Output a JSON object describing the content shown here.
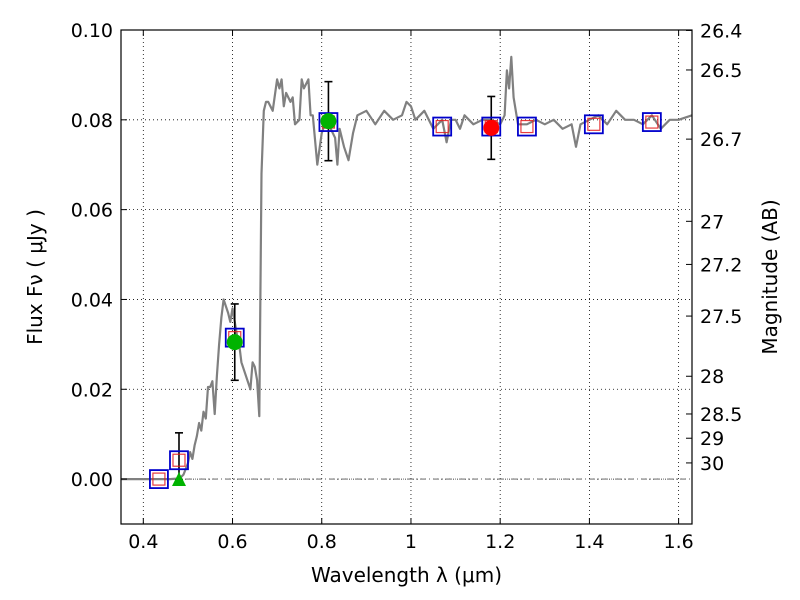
{
  "chart_data": {
    "type": "scatter",
    "title": "",
    "xlabel": "Wavelength  λ (μm)",
    "ylabel_left": "Flux  Fν  ( μJy )",
    "ylabel_right": "Magnitude (AB)",
    "xlim": [
      0.35,
      1.63
    ],
    "ylim": [
      -0.01,
      0.1
    ],
    "grid": true,
    "x_ticks": [
      0.4,
      0.6,
      0.8,
      1.0,
      1.2,
      1.4,
      1.6
    ],
    "x_tick_labels": [
      "0.4",
      "0.6",
      "0.8",
      "1",
      "1.2",
      "1.4",
      "1.6"
    ],
    "y_ticks": [
      0.0,
      0.02,
      0.04,
      0.06,
      0.08,
      0.1
    ],
    "y_tick_labels": [
      "0.00",
      "0.02",
      "0.04",
      "0.06",
      "0.08",
      "0.10"
    ],
    "right_ticks": [
      {
        "label": "26.4",
        "flux": 0.0999
      },
      {
        "label": "26.5",
        "flux": 0.0911
      },
      {
        "label": "26.7",
        "flux": 0.0757
      },
      {
        "label": "27",
        "flux": 0.0574
      },
      {
        "label": "27.2",
        "flux": 0.0478
      },
      {
        "label": "27.5",
        "flux": 0.0363
      },
      {
        "label": "28",
        "flux": 0.0229
      },
      {
        "label": "28.5",
        "flux": 0.0145
      },
      {
        "label": "29",
        "flux": 0.0091
      },
      {
        "label": "30",
        "flux": 0.0036
      }
    ],
    "colors": {
      "sed": "#808080",
      "model_box": "#0000cc",
      "model_inner": "#e31a1c",
      "detection_green": "#00b300",
      "detection_red": "#ff0000",
      "errorbar": "#000000",
      "zero_line": "#555555",
      "grid": "#000000"
    },
    "series": [
      {
        "name": "SED template",
        "type": "line",
        "x": [
          0.35,
          0.46,
          0.475,
          0.482,
          0.49,
          0.5,
          0.505,
          0.51,
          0.515,
          0.52,
          0.525,
          0.53,
          0.535,
          0.54,
          0.545,
          0.55,
          0.555,
          0.56,
          0.565,
          0.57,
          0.575,
          0.58,
          0.59,
          0.595,
          0.6,
          0.61,
          0.615,
          0.62,
          0.63,
          0.64,
          0.645,
          0.65,
          0.655,
          0.66,
          0.665,
          0.67,
          0.675,
          0.68,
          0.69,
          0.7,
          0.705,
          0.71,
          0.715,
          0.72,
          0.73,
          0.735,
          0.74,
          0.75,
          0.755,
          0.76,
          0.77,
          0.775,
          0.78,
          0.79,
          0.8,
          0.81,
          0.82,
          0.83,
          0.835,
          0.84,
          0.85,
          0.86,
          0.87,
          0.88,
          0.9,
          0.92,
          0.94,
          0.96,
          0.98,
          0.99,
          1.0,
          1.01,
          1.02,
          1.03,
          1.05,
          1.07,
          1.08,
          1.09,
          1.1,
          1.11,
          1.12,
          1.14,
          1.16,
          1.18,
          1.2,
          1.21,
          1.215,
          1.22,
          1.225,
          1.23,
          1.24,
          1.26,
          1.28,
          1.3,
          1.32,
          1.34,
          1.36,
          1.37,
          1.38,
          1.4,
          1.42,
          1.44,
          1.46,
          1.48,
          1.5,
          1.52,
          1.54,
          1.56,
          1.58,
          1.6,
          1.63
        ],
        "y": [
          0.0,
          0.0,
          0.0001,
          0.0002,
          0.001,
          0.0035,
          0.006,
          0.0045,
          0.0075,
          0.0095,
          0.0125,
          0.0108,
          0.015,
          0.0135,
          0.0205,
          0.0205,
          0.0218,
          0.0145,
          0.023,
          0.03,
          0.036,
          0.04,
          0.037,
          0.035,
          0.038,
          0.032,
          0.03,
          0.026,
          0.023,
          0.02,
          0.026,
          0.025,
          0.022,
          0.014,
          0.068,
          0.082,
          0.084,
          0.084,
          0.082,
          0.089,
          0.087,
          0.089,
          0.083,
          0.086,
          0.084,
          0.085,
          0.079,
          0.08,
          0.089,
          0.087,
          0.089,
          0.081,
          0.081,
          0.07,
          0.077,
          0.08,
          0.078,
          0.076,
          0.07,
          0.078,
          0.074,
          0.071,
          0.077,
          0.081,
          0.082,
          0.079,
          0.082,
          0.08,
          0.081,
          0.084,
          0.083,
          0.08,
          0.081,
          0.082,
          0.078,
          0.08,
          0.075,
          0.08,
          0.08,
          0.078,
          0.081,
          0.079,
          0.08,
          0.08,
          0.079,
          0.081,
          0.091,
          0.087,
          0.094,
          0.085,
          0.079,
          0.079,
          0.08,
          0.079,
          0.08,
          0.078,
          0.079,
          0.074,
          0.079,
          0.08,
          0.081,
          0.079,
          0.082,
          0.08,
          0.08,
          0.079,
          0.081,
          0.078,
          0.08,
          0.08,
          0.081
        ]
      },
      {
        "name": "Model photometry",
        "type": "open-square",
        "x": [
          0.435,
          0.48,
          0.605,
          0.815,
          1.07,
          1.18,
          1.26,
          1.41,
          1.54
        ],
        "y": [
          0.0,
          0.0042,
          0.0315,
          0.0795,
          0.0785,
          0.0785,
          0.0785,
          0.079,
          0.0795
        ]
      },
      {
        "name": "Detections (HST optical)",
        "type": "filled-circle",
        "x": [
          0.605,
          0.815
        ],
        "y": [
          0.0305,
          0.0797
        ],
        "yerr": [
          0.0085,
          0.0088
        ]
      },
      {
        "name": "Detection (NIR)",
        "type": "filled-circle",
        "x": [
          1.18
        ],
        "y": [
          0.0782
        ],
        "yerr": [
          0.007
        ]
      },
      {
        "name": "Upper limit",
        "type": "triangle",
        "x": [
          0.48
        ],
        "y": [
          -0.0002
        ],
        "yerr_upper": [
          0.0105
        ]
      }
    ]
  }
}
